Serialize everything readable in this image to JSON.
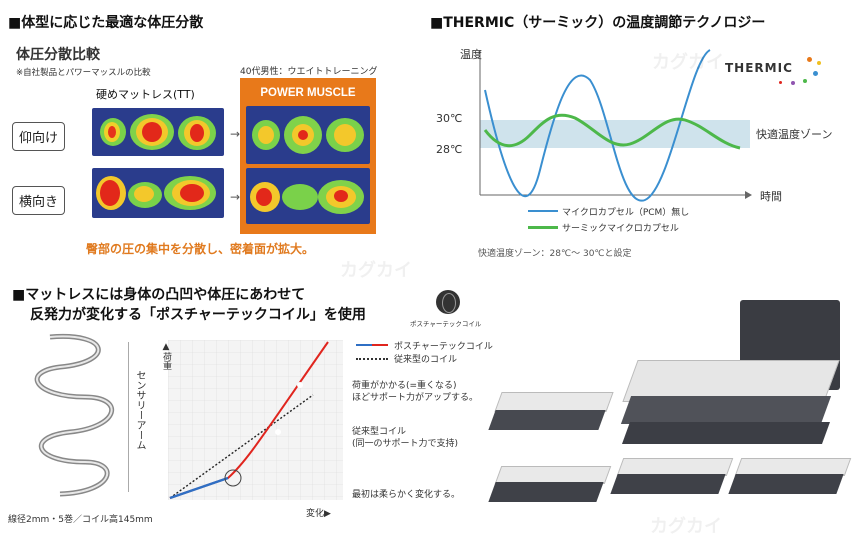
{
  "section1": {
    "title": "■体型に応じた最適な体圧分散",
    "subtitle": "体圧分散比較",
    "note": "※自社製品とパワーマッスルの比較",
    "left_header": "硬めマットレス(TT)",
    "right_header_note": "40代男性：ウエイトトレーニング",
    "right_header": "POWER MUSCLE",
    "pos_supine": "仰向け",
    "pos_side": "横向き",
    "caption": "臀部の圧の集中を分散し、密着面が拡大。"
  },
  "section2": {
    "title": "■THERMIC（サーミック）の温度調節テクノロジー",
    "y_label": "温度",
    "tick_30": "30℃",
    "tick_28": "28℃",
    "zone_label": "快適温度ゾーン",
    "x_label": "時間",
    "logo": "THERMIC",
    "legend_blue": "マイクロカプセル（PCM）無し",
    "legend_green": "サーミックマイクロカプセル",
    "footnote": "快適温度ゾーン：28℃〜 30℃と設定",
    "colors": {
      "blue": "#3a8fd0",
      "green": "#4db84a",
      "zone": "#cfe3ec"
    }
  },
  "section3": {
    "title_line1": "■マットレスには身体の凸凹や体圧にあわせて",
    "title_line2": "反発力が変化する「ポスチャーテックコイル」を使用",
    "coil_logo_caption": "ポスチャーテックコイル",
    "coil_side_label": "センサリーアーム",
    "coil_spec": "線径2mm・5巻／コイル高145mm",
    "chart_y_label": "▲荷重",
    "chart_x_label": "変化▶",
    "legend_red": "ポスチャーテックコイル",
    "legend_dotted": "従来型のコイル",
    "ann_top": "荷重がかかる(=重くなる)ほどサポート力がアップする。",
    "ann_top_1": "荷重がかかる(=重くなる)",
    "ann_top_2": "ほどサポート力がアップする。",
    "ann_mid_1": "従来型コイル",
    "ann_mid_2": "(同一のサポート力で支持)",
    "ann_bottom": "最初は柔らかく変化する。",
    "colors": {
      "red": "#e0251e",
      "blue": "#2f6fc4"
    }
  },
  "watermark": "カグカイ"
}
